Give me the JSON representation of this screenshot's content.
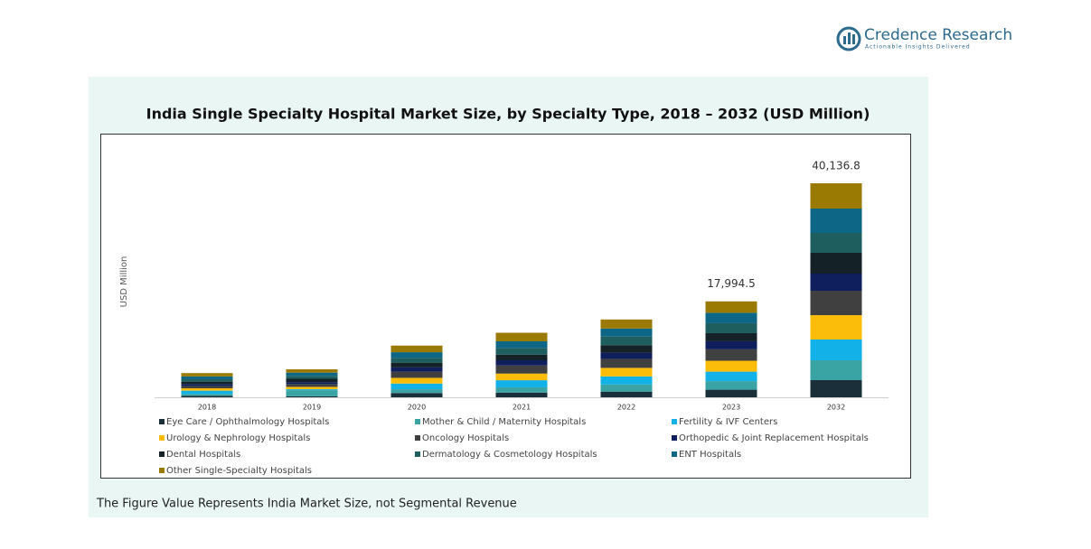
{
  "logo": {
    "name": "Credence Research",
    "tagline": "Actionable Insights Delivered"
  },
  "footnote": "The Figure Value Represents India Market Size, not Segmental Revenue",
  "chart_data": {
    "type": "stacked-bar",
    "title": "India Single Specialty Hospital Market Size, by Specialty Type, 2018 – 2032 (USD Million)",
    "y_label": "USD Million",
    "categories": [
      "2018",
      "2019",
      "2020",
      "2021",
      "2022",
      "2023",
      "2032"
    ],
    "series": [
      {
        "name": "Eye Care / Ophthalmology Hospitals",
        "color": "#1b2f3a",
        "values": [
          267,
          178,
          801,
          890,
          1068,
          1425.3,
          3217.7
        ]
      },
      {
        "name": "Mother & Child / Maternity Hospitals",
        "color": "#3aa3a4",
        "values": [
          356,
          1157,
          712,
          979,
          1335,
          1603.4,
          3725.7
        ]
      },
      {
        "name": "Fertility & IVF Centers",
        "color": "#12b1e8",
        "values": [
          623,
          178,
          1068,
          1335,
          1513,
          1781.6,
          3895.1
        ]
      },
      {
        "name": "Urology & Nephrology Hospitals",
        "color": "#fbbd0a",
        "values": [
          445,
          445,
          1068,
          1246,
          1602,
          2048.8,
          4572.5
        ]
      },
      {
        "name": "Oncology Hospitals",
        "color": "#404040",
        "values": [
          445,
          534,
          1157,
          1513,
          1691,
          2137.9,
          4572.5
        ]
      },
      {
        "name": "Orthopedic & Joint Replacement Hospitals",
        "color": "#0f1e5c",
        "values": [
          356,
          356,
          801,
          979,
          1157,
          1514.4,
          3217.7
        ]
      },
      {
        "name": "Dental Hospitals",
        "color": "#142228",
        "values": [
          445,
          623,
          890,
          1068,
          1424,
          1514.4,
          3895.1
        ]
      },
      {
        "name": "Dermatology & Cosmetology Hospitals",
        "color": "#1f5e5e",
        "values": [
          445,
          534,
          890,
          1246,
          1602,
          1870.7,
          3725.7
        ]
      },
      {
        "name": "ENT Hospitals",
        "color": "#0e6686",
        "values": [
          534,
          623,
          1068,
          1246,
          1513,
          1959.8,
          4572.5
        ]
      },
      {
        "name": "Other Single-Specialty Hospitals",
        "color": "#9b7a03",
        "values": [
          623,
          623,
          1246,
          1602,
          1691,
          2138.2,
          4742.3
        ]
      }
    ],
    "totals": [
      null,
      null,
      null,
      null,
      null,
      17994.5,
      40136.8
    ],
    "total_labels": [
      null,
      null,
      null,
      null,
      null,
      "17,994.5",
      "40,136.8"
    ]
  }
}
